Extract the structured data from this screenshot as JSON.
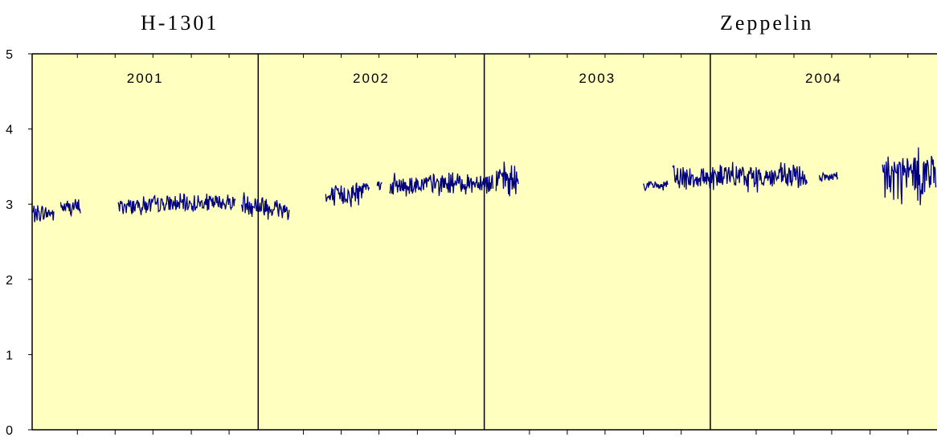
{
  "chart_data": {
    "type": "line",
    "station_labels": [
      "H-1301",
      "Zeppelin"
    ],
    "years": [
      "2001",
      "2002",
      "2003",
      "2004"
    ],
    "x_range": [
      "2001-01-01",
      "2004-12-31"
    ],
    "ylim": [
      0,
      5
    ],
    "y_ticks": [
      "0",
      "1",
      "2",
      "3",
      "4",
      "5"
    ],
    "plot_background": "#FFFFC0",
    "line_color": "#000080",
    "grid": false,
    "series": [
      {
        "segments": [
          {
            "start": "2001-01-01",
            "end": "2001-02-05",
            "mean": 2.88,
            "spread": 0.14,
            "trend": 0.0
          },
          {
            "start": "2001-02-16",
            "end": "2001-03-20",
            "mean": 2.96,
            "spread": 0.14,
            "trend": 0.0
          },
          {
            "start": "2001-05-20",
            "end": "2001-11-25",
            "mean": 3.0,
            "spread": 0.15,
            "trend": 0.05
          },
          {
            "start": "2001-12-05",
            "end": "2002-02-20",
            "mean": 2.97,
            "spread": 0.2,
            "trend": -0.1
          },
          {
            "start": "2002-04-20",
            "end": "2002-06-20",
            "mean": 3.12,
            "spread": 0.2,
            "trend": 0.1
          },
          {
            "start": "2002-06-20",
            "end": "2002-06-30",
            "mean": 3.26,
            "spread": 0.08,
            "trend": 0.0
          },
          {
            "start": "2002-07-12",
            "end": "2002-07-20",
            "mean": 3.26,
            "spread": 0.08,
            "trend": 0.0
          },
          {
            "start": "2002-08-01",
            "end": "2003-01-15",
            "mean": 3.27,
            "spread": 0.18,
            "trend": 0.05
          },
          {
            "start": "2003-01-20",
            "end": "2003-02-25",
            "mean": 3.32,
            "spread": 0.25,
            "trend": -0.05
          },
          {
            "start": "2003-09-15",
            "end": "2003-10-25",
            "mean": 3.25,
            "spread": 0.08,
            "trend": 0.0
          },
          {
            "start": "2003-11-01",
            "end": "2004-06-05",
            "mean": 3.36,
            "spread": 0.22,
            "trend": 0.0
          },
          {
            "start": "2004-06-25",
            "end": "2004-07-25",
            "mean": 3.35,
            "spread": 0.1,
            "trend": 0.0
          },
          {
            "start": "2004-10-05",
            "end": "2004-12-31",
            "mean": 3.38,
            "spread": 0.45,
            "trend": 0.05
          }
        ]
      }
    ]
  }
}
